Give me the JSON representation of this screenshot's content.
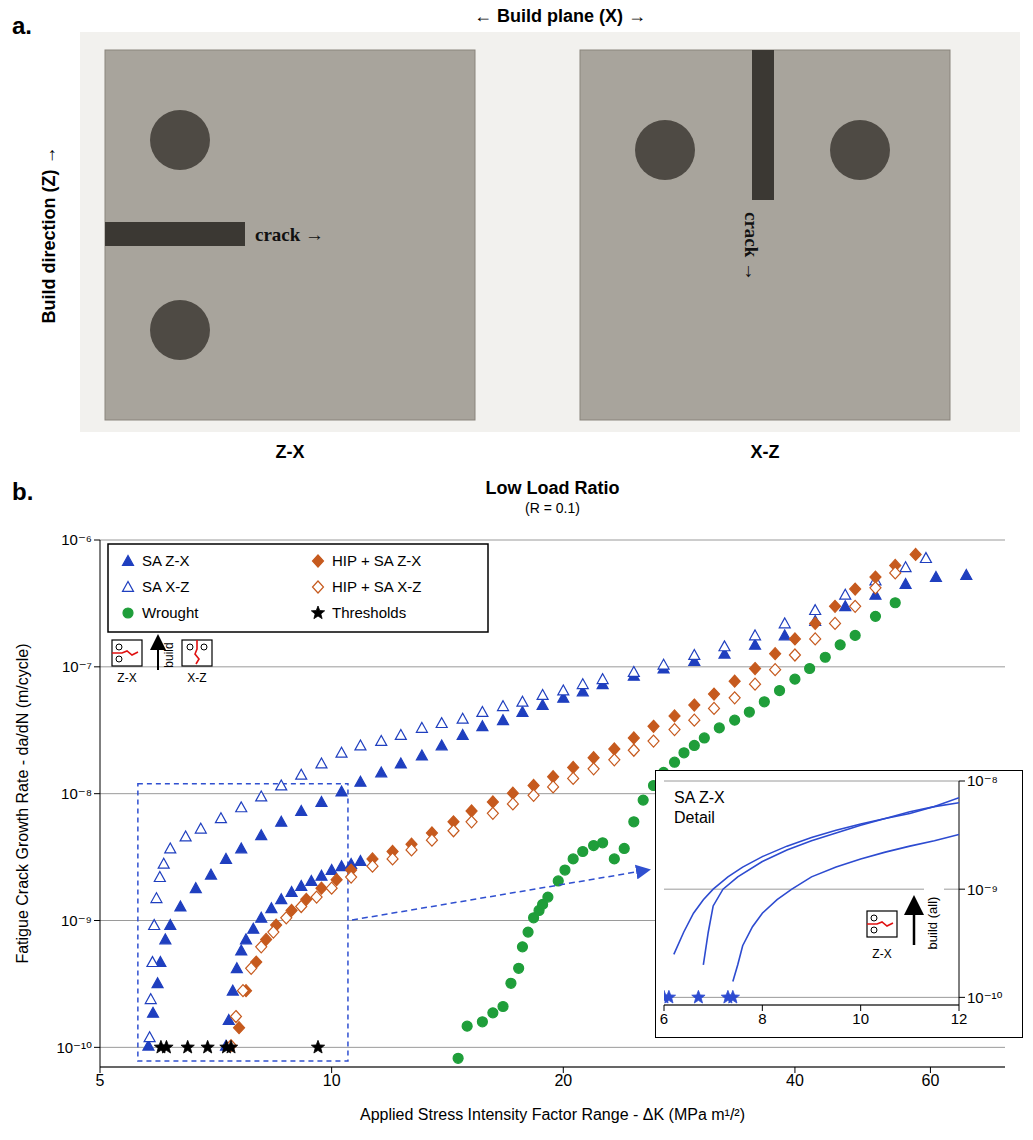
{
  "panel_a": {
    "label": "a.",
    "title": "← Build plane (X) →",
    "y_label": "Build direction (Z) →",
    "specimens": [
      {
        "label": "Z-X",
        "annotation": "crack →"
      },
      {
        "label": "X-Z",
        "annotation": "crack →"
      }
    ]
  },
  "chart_data": [
    {
      "type": "scatter",
      "panel": "b.",
      "title": "Low Load Ratio",
      "subtitle": "(R = 0.1)",
      "x_label": "Applied Stress Intensity Factor Range - ΔK (MPa m¹/²)",
      "y_label": "Fatigue Crack Growth Rate - da/dN (m/cycle)",
      "log": true,
      "grid": true,
      "legend": "upper left",
      "xlim": [
        5,
        75
      ],
      "xticks": [
        5,
        10,
        20,
        40,
        60
      ],
      "ylim": [
        7e-11,
        1e-06
      ],
      "yticks": [
        {
          "value": 1e-10,
          "label": "10⁻¹⁰"
        },
        {
          "value": 1e-09,
          "label": "10⁻⁹"
        },
        {
          "value": 1e-08,
          "label": "10⁻⁸"
        },
        {
          "value": 1e-07,
          "label": "10⁻⁷"
        },
        {
          "value": 1e-06,
          "label": "10⁻⁶"
        }
      ],
      "annotations": [
        "Z-X",
        "build",
        "X-Z"
      ],
      "zoom_box": {
        "x": [
          5.6,
          10.5
        ],
        "y": [
          7.8e-11,
          1.2e-08
        ]
      },
      "series": [
        {
          "name": "SA Z-X",
          "color": "#1f3fbf",
          "marker": "triangle",
          "x": [
            5.78,
            5.86,
            5.94,
            5.99,
            6.08,
            6.17,
            6.36,
            6.66,
            6.97,
            7.29,
            7.63,
            8.1,
            8.6,
            9.13,
            9.7,
            10.3,
            10.9,
            11.6,
            12.3,
            13.1,
            13.9,
            14.8,
            15.7,
            16.7,
            17.7,
            18.8,
            20.0,
            21.2,
            22.5,
            24.7,
            27.0,
            29.6,
            32.4,
            35.5,
            38.8,
            42.5,
            46.5,
            50.9,
            55.7,
            61.0,
            66.8,
            7.29,
            7.35,
            7.44,
            7.53,
            7.63,
            7.74,
            7.91,
            8.1,
            8.35,
            8.6,
            8.87,
            9.13,
            9.41,
            9.7,
            10.0,
            10.3,
            10.6,
            10.9
          ],
          "values": [
            1.03e-10,
            1.87e-10,
            3.2e-10,
            4.7e-10,
            7.1e-10,
            9.2e-10,
            1.29e-09,
            1.8e-09,
            2.3e-09,
            3.06e-09,
            3.7e-09,
            4.7e-09,
            6e-09,
            7.3e-09,
            8.6e-09,
            1.04e-08,
            1.24e-08,
            1.47e-08,
            1.73e-08,
            2e-08,
            2.4e-08,
            2.9e-08,
            3.4e-08,
            3.8e-08,
            4.4e-08,
            5e-08,
            5.7e-08,
            6.4e-08,
            7.3e-08,
            8.5e-08,
            9.7e-08,
            1.11e-07,
            1.27e-07,
            1.49e-07,
            1.77e-07,
            2.3e-07,
            3e-07,
            3.7e-07,
            4.5e-07,
            5.1e-07,
            5.3e-07,
            1.03e-10,
            1.64e-10,
            2.8e-10,
            4.2e-10,
            5.8e-10,
            7.1e-10,
            8.6e-10,
            1.05e-09,
            1.25e-09,
            1.47e-09,
            1.68e-09,
            1.87e-09,
            2.05e-09,
            2.25e-09,
            2.5e-09,
            2.68e-09,
            2.79e-09,
            2.94e-09
          ]
        },
        {
          "name": "SA X-Z",
          "color": "#1f3fbf",
          "marker": "triangle-open",
          "x": [
            5.8,
            5.82,
            5.85,
            5.88,
            5.92,
            5.98,
            6.05,
            6.17,
            6.46,
            6.76,
            7.18,
            7.63,
            8.1,
            8.6,
            9.13,
            9.7,
            10.3,
            10.9,
            11.6,
            12.3,
            13.1,
            13.9,
            14.8,
            15.7,
            16.7,
            17.7,
            18.8,
            20.0,
            21.2,
            22.5,
            24.7,
            27.0,
            29.6,
            32.4,
            35.5,
            38.8,
            42.5,
            46.5,
            50.9,
            55.7,
            59.2
          ],
          "values": [
            1.2e-10,
            2.4e-10,
            4.7e-10,
            9.2e-10,
            1.5e-09,
            2.2e-09,
            2.8e-09,
            3.7e-09,
            4.6e-09,
            5.3e-09,
            6.4e-09,
            7.8e-09,
            9.5e-09,
            1.16e-08,
            1.41e-08,
            1.73e-08,
            2.1e-08,
            2.4e-08,
            2.6e-08,
            2.9e-08,
            3.3e-08,
            3.6e-08,
            3.9e-08,
            4.4e-08,
            4.9e-08,
            5.3e-08,
            6e-08,
            6.5e-08,
            7.3e-08,
            8e-08,
            9.1e-08,
            1.04e-07,
            1.24e-07,
            1.45e-07,
            1.77e-07,
            2.2e-07,
            2.8e-07,
            3.7e-07,
            4.8e-07,
            6.1e-07,
            7.2e-07
          ]
        },
        {
          "name": "Wrought",
          "color": "#1f9e3a",
          "marker": "circle",
          "x": [
            14.6,
            15.0,
            15.7,
            16.2,
            16.7,
            17.1,
            17.5,
            17.7,
            18.0,
            18.3,
            18.6,
            18.8,
            19.1,
            19.7,
            20.1,
            20.6,
            21.2,
            21.9,
            22.5,
            23.3,
            24.0,
            24.7,
            25.4,
            26.2,
            27.0,
            27.9,
            28.7,
            29.6,
            30.5,
            31.9,
            33.4,
            34.9,
            36.5,
            38.2,
            40.0,
            41.8,
            43.8,
            45.8,
            47.9,
            50.9,
            54.0
          ],
          "values": [
            8.2e-11,
            1.47e-10,
            1.59e-10,
            1.87e-10,
            2.1e-10,
            3.2e-10,
            4.2e-10,
            6.2e-10,
            8.1e-10,
            1.05e-09,
            1.2e-09,
            1.34e-09,
            1.53e-09,
            2.05e-09,
            2.5e-09,
            3.06e-09,
            3.5e-09,
            3.9e-09,
            4.1e-09,
            3.06e-09,
            3.7e-09,
            6e-09,
            8.9e-09,
            1.16e-08,
            1.47e-08,
            1.77e-08,
            2.1e-08,
            2.4e-08,
            2.75e-08,
            3.3e-08,
            3.8e-08,
            4.4e-08,
            5.3e-08,
            6.5e-08,
            8e-08,
            9.7e-08,
            1.19e-07,
            1.49e-07,
            1.77e-07,
            2.5e-07,
            3.2e-07
          ]
        },
        {
          "name": "HIP + SA Z-X",
          "color": "#c65a1e",
          "marker": "diamond",
          "x": [
            7.58,
            7.74,
            7.98,
            8.22,
            8.47,
            8.87,
            9.27,
            9.7,
            10.15,
            10.6,
            11.3,
            12.0,
            12.7,
            13.5,
            14.4,
            15.2,
            16.2,
            17.2,
            18.3,
            19.4,
            20.6,
            21.9,
            23.3,
            24.7,
            26.2,
            27.9,
            29.6,
            31.4,
            33.4,
            35.5,
            37.7,
            40.0,
            42.5,
            45.1,
            47.9,
            50.9,
            54.0,
            57.4
          ],
          "values": [
            1.43e-10,
            2.8e-10,
            4.7e-10,
            7.1e-10,
            9.2e-10,
            1.2e-09,
            1.47e-09,
            1.8e-09,
            2.1e-09,
            2.5e-09,
            3.06e-09,
            3.5e-09,
            4e-09,
            4.9e-09,
            6e-09,
            7.3e-09,
            8.6e-09,
            1.01e-08,
            1.16e-08,
            1.36e-08,
            1.61e-08,
            1.92e-08,
            2.25e-08,
            2.75e-08,
            3.4e-08,
            4.1e-08,
            5e-08,
            6.1e-08,
            7.7e-08,
            9.7e-08,
            1.27e-07,
            1.66e-07,
            2.2e-07,
            3e-07,
            4.1e-07,
            5.1e-07,
            6.3e-07,
            7.7e-07
          ]
        },
        {
          "name": "HIP + SA X-Z",
          "color": "#c65a1e",
          "marker": "diamond-open",
          "x": [
            7.4,
            7.51,
            7.67,
            7.86,
            8.1,
            8.4,
            8.73,
            9.13,
            9.56,
            10.0,
            10.6,
            11.3,
            12.0,
            12.7,
            13.5,
            14.4,
            15.2,
            16.2,
            17.2,
            18.3,
            19.4,
            20.6,
            21.9,
            23.3,
            24.7,
            26.2,
            27.9,
            29.6,
            31.4,
            33.4,
            35.5,
            37.7,
            40.0,
            42.5,
            45.1,
            47.9,
            50.9,
            54.0
          ],
          "values": [
            1.03e-10,
            1.75e-10,
            2.8e-10,
            4.2e-10,
            6.2e-10,
            8.1e-10,
            1.05e-09,
            1.29e-09,
            1.53e-09,
            1.8e-09,
            2.2e-09,
            2.68e-09,
            3.06e-09,
            3.6e-09,
            4.3e-09,
            5.1e-09,
            6e-09,
            7e-09,
            8.3e-09,
            9.7e-09,
            1.13e-08,
            1.32e-08,
            1.57e-08,
            1.85e-08,
            2.2e-08,
            2.6e-08,
            3.2e-08,
            3.8e-08,
            4.7e-08,
            5.7e-08,
            7.3e-08,
            9.5e-08,
            1.24e-07,
            1.66e-07,
            2.2e-07,
            3e-07,
            4.2e-07,
            5.5e-07
          ]
        },
        {
          "name": "Thresholds",
          "color": "#000000",
          "marker": "star",
          "x": [
            6.0,
            6.1,
            6.5,
            6.9,
            7.3,
            7.4,
            9.6
          ],
          "values": [
            1e-10,
            1e-10,
            1e-10,
            1e-10,
            1e-10,
            1e-10,
            1e-10
          ]
        }
      ]
    },
    {
      "type": "line",
      "title": "SA Z-X",
      "subtitle": "Detail",
      "log": "y",
      "grid": true,
      "annotations": [
        "build (all)",
        "Z-X"
      ],
      "xlim": [
        6,
        12
      ],
      "xticks": [
        6,
        8,
        10,
        12
      ],
      "ylim": [
        8.5e-11,
        1e-08
      ],
      "yticks": [
        {
          "value": 1e-10,
          "label": "10⁻¹⁰"
        },
        {
          "value": 1e-09,
          "label": "10⁻⁹"
        },
        {
          "value": 1e-08,
          "label": "10⁻⁸"
        }
      ],
      "series": [
        {
          "color": "#2d4bd0",
          "x": [
            6.2,
            6.4,
            6.6,
            6.8,
            7.0,
            7.3,
            7.6,
            8.0,
            8.5,
            9.0,
            9.5,
            10.0,
            10.5,
            11.0,
            11.5,
            12.0
          ],
          "values": [
            2.5e-10,
            4e-10,
            6e-10,
            8e-10,
            1e-09,
            1.3e-09,
            1.6e-09,
            2e-09,
            2.5e-09,
            3e-09,
            3.5e-09,
            4e-09,
            4.5e-09,
            5e-09,
            5.8e-09,
            7e-09
          ]
        },
        {
          "color": "#2d4bd0",
          "x": [
            6.8,
            6.9,
            7.0,
            7.2,
            7.5,
            8.0,
            8.5,
            9.0,
            9.5,
            10.0,
            10.5,
            11.0,
            11.5,
            12.0
          ],
          "values": [
            2e-10,
            4e-10,
            7e-10,
            1e-09,
            1.3e-09,
            1.8e-09,
            2.3e-09,
            2.8e-09,
            3.3e-09,
            3.9e-09,
            4.5e-09,
            5.2e-09,
            5.8e-09,
            6.3e-09
          ]
        },
        {
          "color": "#2d4bd0",
          "x": [
            7.4,
            7.5,
            7.6,
            7.8,
            8.0,
            8.3,
            8.6,
            9.0,
            9.5,
            10.0,
            10.5,
            11.0,
            11.5,
            12.0
          ],
          "values": [
            1.4e-10,
            2e-10,
            3e-10,
            4.5e-10,
            6e-10,
            8e-10,
            1e-09,
            1.3e-09,
            1.6e-09,
            1.9e-09,
            2.2e-09,
            2.5e-09,
            2.8e-09,
            3.2e-09
          ]
        },
        {
          "type": "scatter",
          "marker": "star",
          "color": "#2d4bd0",
          "x": [
            6.0,
            6.1,
            6.7,
            7.3,
            7.4
          ],
          "values": [
            1e-10,
            1e-10,
            1e-10,
            1e-10,
            1e-10
          ]
        }
      ]
    }
  ]
}
